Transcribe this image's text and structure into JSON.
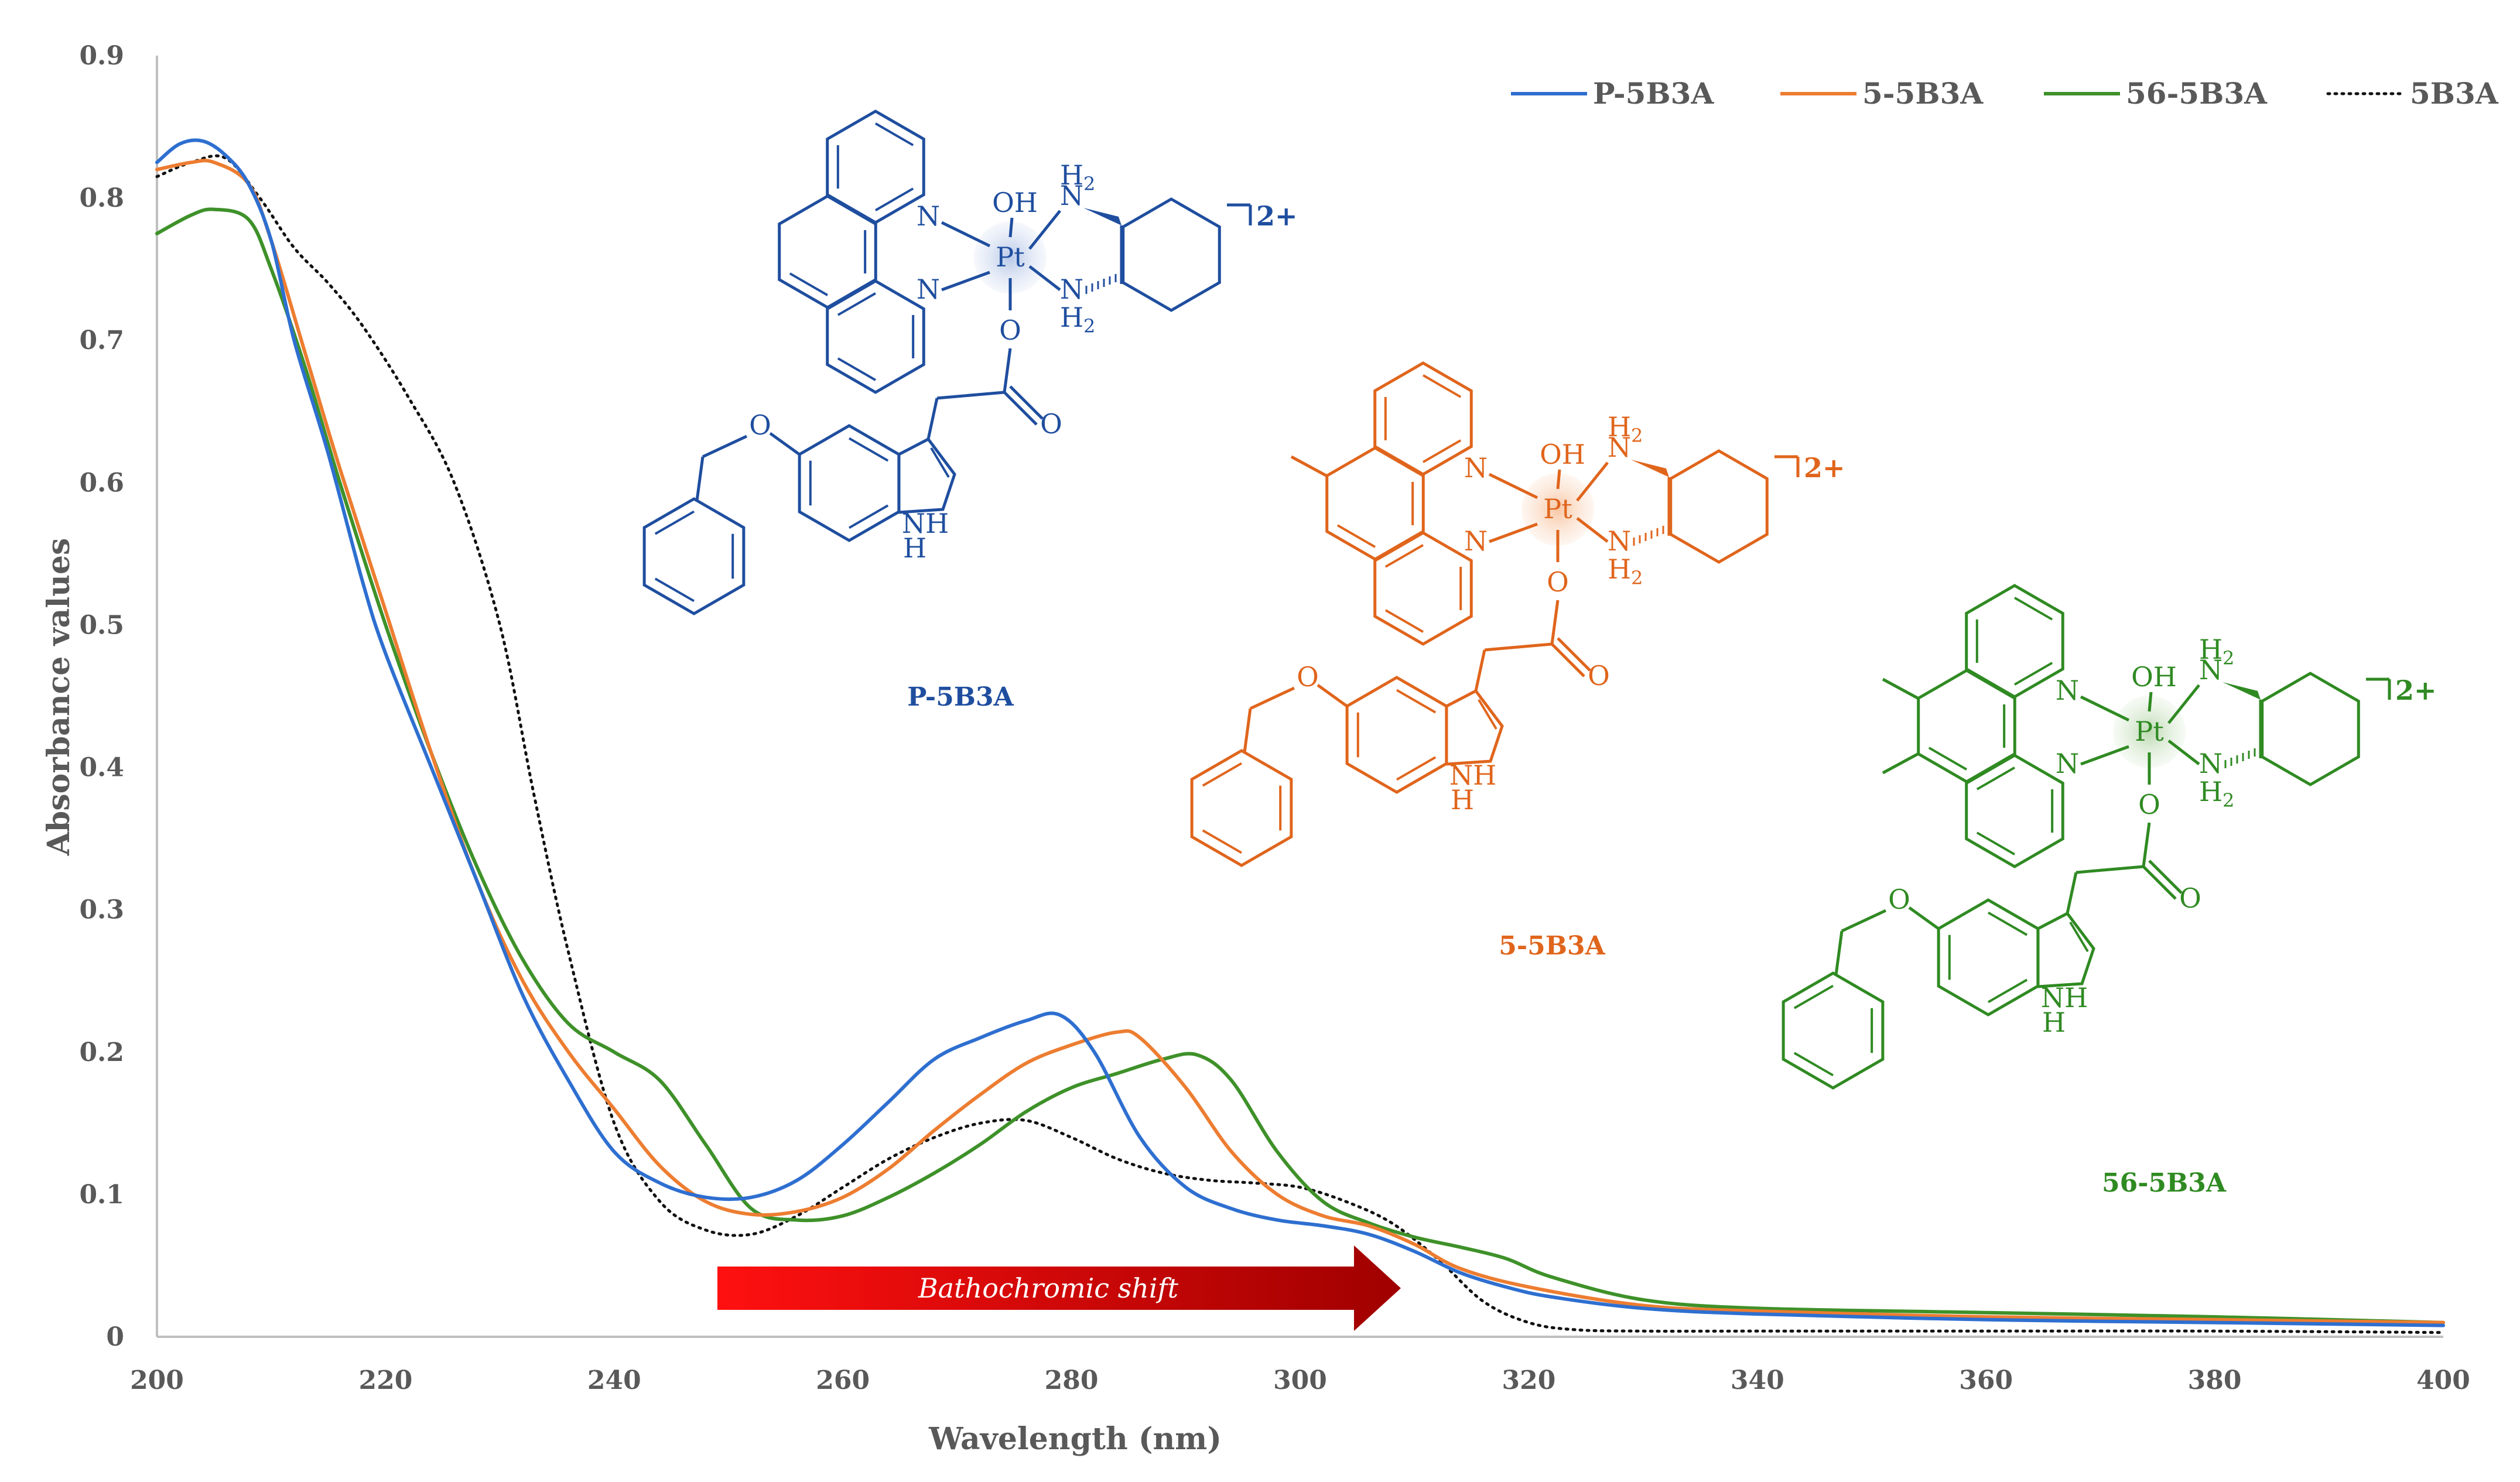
{
  "chart_data": {
    "type": "line",
    "xlabel": "Wavelength (nm)",
    "ylabel": "Absorbance values",
    "xlim": [
      200,
      400
    ],
    "ylim": [
      0,
      0.9
    ],
    "x_ticks": [
      "200",
      "220",
      "240",
      "260",
      "280",
      "300",
      "320",
      "340",
      "360",
      "380",
      "400"
    ],
    "y_ticks": [
      "0",
      "0.1",
      "0.2",
      "0.3",
      "0.4",
      "0.5",
      "0.6",
      "0.7",
      "0.8",
      "0.9"
    ],
    "legend_position": "top-right",
    "series": [
      {
        "name": "P-5B3A",
        "color": "#2e6fd0",
        "style": "solid",
        "x": [
          200,
          202,
          204,
          206,
          208,
          210,
          212,
          215,
          218,
          220,
          224,
          228,
          232,
          236,
          240,
          244,
          248,
          252,
          256,
          260,
          264,
          268,
          272,
          276,
          279,
          282,
          286,
          290,
          294,
          298,
          302,
          306,
          310,
          314,
          318,
          322,
          330,
          340,
          360,
          380,
          400
        ],
        "y": [
          0.825,
          0.838,
          0.84,
          0.83,
          0.81,
          0.77,
          0.7,
          0.62,
          0.53,
          0.48,
          0.4,
          0.32,
          0.24,
          0.18,
          0.13,
          0.108,
          0.098,
          0.098,
          0.11,
          0.135,
          0.165,
          0.195,
          0.21,
          0.222,
          0.226,
          0.2,
          0.14,
          0.105,
          0.09,
          0.082,
          0.078,
          0.072,
          0.06,
          0.045,
          0.035,
          0.028,
          0.02,
          0.016,
          0.012,
          0.01,
          0.008
        ]
      },
      {
        "name": "5-5B3A",
        "color": "#ed7d31",
        "style": "solid",
        "x": [
          200,
          203,
          205,
          208,
          210,
          213,
          216,
          220,
          224,
          228,
          232,
          236,
          240,
          244,
          248,
          252,
          256,
          260,
          264,
          268,
          272,
          276,
          280,
          284,
          286,
          290,
          294,
          298,
          302,
          306,
          310,
          314,
          320,
          330,
          340,
          360,
          380,
          400
        ],
        "y": [
          0.82,
          0.825,
          0.825,
          0.81,
          0.77,
          0.69,
          0.61,
          0.51,
          0.41,
          0.32,
          0.25,
          0.2,
          0.16,
          0.12,
          0.095,
          0.086,
          0.088,
          0.098,
          0.118,
          0.145,
          0.17,
          0.192,
          0.205,
          0.214,
          0.21,
          0.175,
          0.13,
          0.1,
          0.085,
          0.078,
          0.065,
          0.048,
          0.035,
          0.022,
          0.018,
          0.014,
          0.012,
          0.01
        ]
      },
      {
        "name": "56-5B3A",
        "color": "#3e9129",
        "style": "solid",
        "x": [
          200,
          203,
          205,
          208,
          210,
          213,
          216,
          220,
          224,
          228,
          232,
          236,
          240,
          244,
          248,
          252,
          256,
          260,
          264,
          268,
          272,
          276,
          280,
          284,
          288,
          291,
          294,
          298,
          302,
          306,
          310,
          314,
          318,
          322,
          330,
          340,
          360,
          380,
          400
        ],
        "y": [
          0.775,
          0.788,
          0.792,
          0.785,
          0.75,
          0.68,
          0.6,
          0.5,
          0.41,
          0.33,
          0.265,
          0.22,
          0.2,
          0.18,
          0.135,
          0.09,
          0.082,
          0.085,
          0.098,
          0.115,
          0.135,
          0.158,
          0.175,
          0.185,
          0.195,
          0.198,
          0.18,
          0.13,
          0.095,
          0.08,
          0.07,
          0.063,
          0.055,
          0.042,
          0.026,
          0.02,
          0.017,
          0.014,
          0.01
        ]
      },
      {
        "name": "5B3A",
        "color": "#111111",
        "style": "dotted",
        "x": [
          200,
          203,
          206,
          209,
          212,
          215,
          218,
          222,
          226,
          230,
          233,
          236,
          240,
          244,
          248,
          252,
          256,
          260,
          264,
          268,
          272,
          276,
          280,
          284,
          288,
          292,
          296,
          300,
          304,
          308,
          312,
          316,
          320,
          324,
          330,
          340,
          360,
          380,
          400
        ],
        "y": [
          0.815,
          0.825,
          0.828,
          0.8,
          0.765,
          0.74,
          0.71,
          0.66,
          0.6,
          0.5,
          0.38,
          0.27,
          0.15,
          0.095,
          0.075,
          0.072,
          0.085,
          0.105,
          0.125,
          0.14,
          0.15,
          0.152,
          0.14,
          0.125,
          0.115,
          0.11,
          0.108,
          0.105,
          0.095,
          0.08,
          0.055,
          0.025,
          0.01,
          0.005,
          0.004,
          0.004,
          0.004,
          0.004,
          0.003
        ]
      }
    ],
    "annotations": {
      "arrow_label": "Bathochromic shift",
      "compounds": [
        {
          "name": "P-5B3A",
          "color": "#1f4e9f"
        },
        {
          "name": "5-5B3A",
          "color": "#e0651c"
        },
        {
          "name": "56-5B3A",
          "color": "#2f8a22"
        }
      ],
      "atoms": {
        "N": "N",
        "OH": "OH",
        "O": "O",
        "Pt": "Pt",
        "H": "H",
        "NH": "NH",
        "sub2": "2",
        "charge": "2+"
      }
    }
  }
}
